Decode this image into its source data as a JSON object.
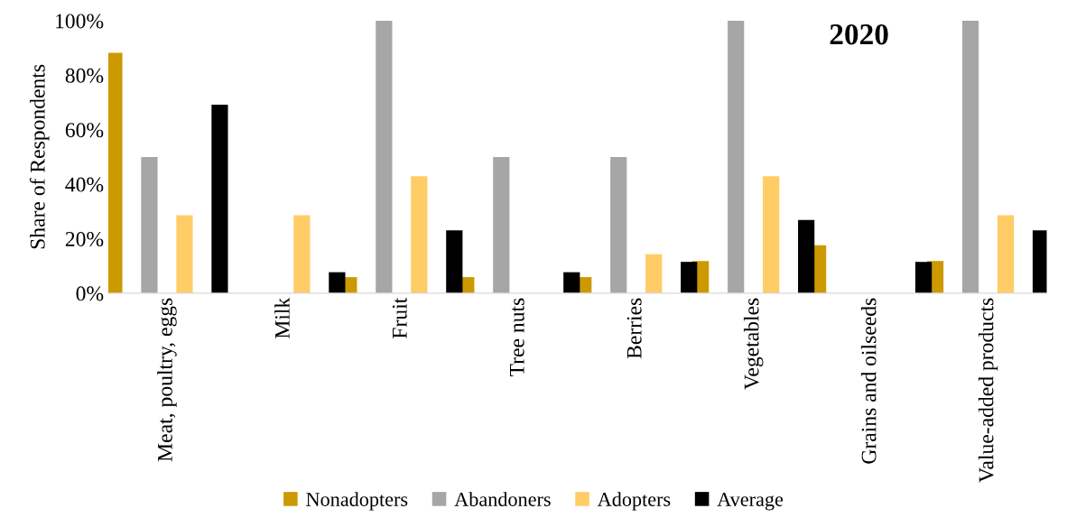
{
  "chart_data": {
    "type": "bar",
    "title": "2020",
    "ylabel": "Share of Respondents",
    "categories": [
      "Meat, poultry, eggs",
      "Milk",
      "Fruit",
      "Tree nuts",
      "Berries",
      "Vegetables",
      "Grains and oilseeds",
      "Value-added products"
    ],
    "series": [
      {
        "name": "Nonadopters",
        "color": "#cc9900",
        "values": [
          88.2,
          0,
          5.9,
          5.9,
          5.9,
          11.8,
          17.6,
          11.8
        ]
      },
      {
        "name": "Abandoners",
        "color": "#a6a6a6",
        "values": [
          50,
          0,
          100,
          50,
          50,
          100,
          0,
          100
        ]
      },
      {
        "name": "Adopters",
        "color": "#ffcc66",
        "values": [
          28.6,
          28.6,
          42.9,
          0,
          14.3,
          42.9,
          0,
          28.6
        ]
      },
      {
        "name": "Average",
        "color": "#000000",
        "values": [
          69.2,
          7.7,
          23.1,
          7.7,
          11.5,
          26.9,
          11.5,
          23.1
        ]
      }
    ],
    "ylim": [
      0,
      100
    ],
    "yticks": [
      {
        "value": 0,
        "label": "0%"
      },
      {
        "value": 20,
        "label": "20%"
      },
      {
        "value": 40,
        "label": "40%"
      },
      {
        "value": 60,
        "label": "60%"
      },
      {
        "value": 80,
        "label": "80%"
      },
      {
        "value": 100,
        "label": "100%"
      }
    ],
    "grid": false,
    "legend": "bottom"
  }
}
